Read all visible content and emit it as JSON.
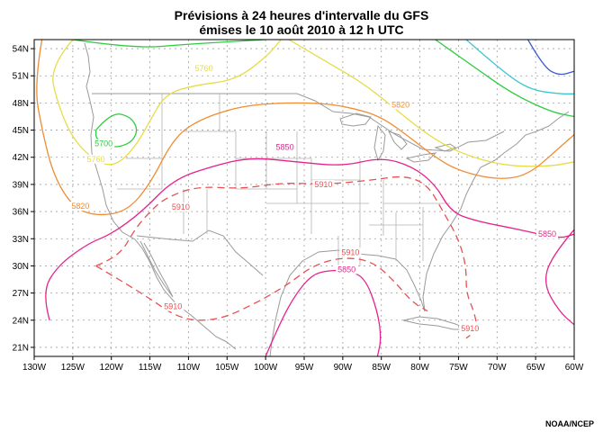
{
  "header": {
    "title_line1": "Prévisions à 24 heures d'intervalle du GFS",
    "title_line2": "émises le 10 août 2010 à 12 h UTC"
  },
  "credit": "NOAA/NCEP",
  "map": {
    "lon_range": [
      -130,
      -60
    ],
    "lat_range": [
      20,
      55
    ],
    "lon_ticks": [
      {
        "v": -130,
        "label": "130W"
      },
      {
        "v": -125,
        "label": "125W"
      },
      {
        "v": -120,
        "label": "120W"
      },
      {
        "v": -115,
        "label": "115W"
      },
      {
        "v": -110,
        "label": "110W"
      },
      {
        "v": -105,
        "label": "105W"
      },
      {
        "v": -100,
        "label": "100W"
      },
      {
        "v": -95,
        "label": "95W"
      },
      {
        "v": -90,
        "label": "90W"
      },
      {
        "v": -85,
        "label": "85W"
      },
      {
        "v": -80,
        "label": "80W"
      },
      {
        "v": -75,
        "label": "75W"
      },
      {
        "v": -70,
        "label": "70W"
      },
      {
        "v": -65,
        "label": "65W"
      },
      {
        "v": -60,
        "label": "60W"
      }
    ],
    "lat_ticks": [
      {
        "v": 54,
        "label": "54N"
      },
      {
        "v": 51,
        "label": "51N"
      },
      {
        "v": 48,
        "label": "48N"
      },
      {
        "v": 45,
        "label": "45N"
      },
      {
        "v": 42,
        "label": "42N"
      },
      {
        "v": 39,
        "label": "39N"
      },
      {
        "v": 36,
        "label": "36N"
      },
      {
        "v": 33,
        "label": "33N"
      },
      {
        "v": 30,
        "label": "30N"
      },
      {
        "v": 27,
        "label": "27N"
      },
      {
        "v": 24,
        "label": "24N"
      },
      {
        "v": 21,
        "label": "21N"
      }
    ],
    "grid": true,
    "contours": [
      {
        "id": "5700-west",
        "color": "#2ecc40",
        "dashed": false,
        "points": [
          [
            -122,
            45
          ],
          [
            -120,
            47
          ],
          [
            -117.5,
            46.5
          ],
          [
            -116.5,
            45
          ],
          [
            -117.5,
            43.5
          ],
          [
            -120,
            43
          ],
          [
            -122,
            44
          ],
          [
            -122,
            45
          ]
        ]
      },
      {
        "id": "5700-north",
        "color": "#2ecc40",
        "dashed": false,
        "points": [
          [
            -125,
            55
          ],
          [
            -117,
            54
          ],
          [
            -110,
            54.5
          ],
          [
            -100,
            55
          ]
        ]
      },
      {
        "id": "5700-northeast",
        "color": "#2ecc40",
        "dashed": false,
        "points": [
          [
            -78,
            55
          ],
          [
            -73,
            52
          ],
          [
            -68,
            49
          ],
          [
            -63,
            47
          ],
          [
            -60,
            46.5
          ]
        ]
      },
      {
        "id": "5760-arc",
        "color": "#e6dc46",
        "dashed": false,
        "points": [
          [
            -125,
            55
          ],
          [
            -128,
            52
          ],
          [
            -127,
            48
          ],
          [
            -125,
            44
          ],
          [
            -122,
            41.5
          ],
          [
            -119.5,
            41
          ],
          [
            -117,
            43
          ],
          [
            -115,
            46
          ],
          [
            -113,
            49
          ],
          [
            -109,
            50
          ],
          [
            -104,
            50.5
          ],
          [
            -100,
            53
          ],
          [
            -98,
            55
          ]
        ]
      },
      {
        "id": "5760-east",
        "color": "#e6dc46",
        "dashed": false,
        "points": [
          [
            -97,
            55
          ],
          [
            -92,
            52.5
          ],
          [
            -87,
            50
          ],
          [
            -82,
            46.5
          ],
          [
            -79,
            44.5
          ],
          [
            -75,
            42.5
          ],
          [
            -69,
            41
          ],
          [
            -63,
            41
          ],
          [
            -60,
            41.5
          ]
        ]
      },
      {
        "id": "5820",
        "color": "#f08c32",
        "dashed": false,
        "points": [
          [
            -129,
            55
          ],
          [
            -130,
            50
          ],
          [
            -129,
            45
          ],
          [
            -127.5,
            40
          ],
          [
            -125,
            36.5
          ],
          [
            -122,
            35.5
          ],
          [
            -118,
            36
          ],
          [
            -115,
            39
          ],
          [
            -112,
            44
          ],
          [
            -109,
            46
          ],
          [
            -104,
            47.5
          ],
          [
            -99,
            48
          ],
          [
            -93,
            48
          ],
          [
            -89,
            47.5
          ],
          [
            -85,
            46.5
          ],
          [
            -81,
            44
          ],
          [
            -78,
            42
          ],
          [
            -75,
            40.5
          ],
          [
            -70,
            39.5
          ],
          [
            -66,
            40
          ],
          [
            -62,
            43
          ],
          [
            -60,
            44.5
          ]
        ]
      },
      {
        "id": "5850",
        "color": "#e6238c",
        "dashed": false,
        "points": [
          [
            -128,
            24
          ],
          [
            -129,
            27
          ],
          [
            -127,
            30
          ],
          [
            -123,
            32.5
          ],
          [
            -120,
            33.5
          ],
          [
            -116,
            36
          ],
          [
            -112,
            39.5
          ],
          [
            -107,
            41
          ],
          [
            -102,
            42
          ],
          [
            -96,
            41.5
          ],
          [
            -90,
            41
          ],
          [
            -85,
            42
          ],
          [
            -81,
            41
          ],
          [
            -78,
            39
          ],
          [
            -76,
            36
          ],
          [
            -73,
            35
          ],
          [
            -67,
            34
          ],
          [
            -62,
            33
          ],
          [
            -60,
            33.5
          ]
        ]
      },
      {
        "id": "5850-east",
        "color": "#e6238c",
        "dashed": false,
        "points": [
          [
            -60,
            34
          ],
          [
            -63,
            31
          ],
          [
            -64,
            28
          ],
          [
            -62,
            25
          ],
          [
            -60,
            23.5
          ]
        ]
      },
      {
        "id": "5850-gulf",
        "color": "#e6238c",
        "dashed": false,
        "points": [
          [
            -100,
            20
          ],
          [
            -98,
            24
          ],
          [
            -96,
            27
          ],
          [
            -94,
            29
          ],
          [
            -92,
            29.5
          ],
          [
            -89,
            29.5
          ],
          [
            -87,
            28.5
          ],
          [
            -85.5,
            25
          ],
          [
            -85,
            22
          ],
          [
            -85.5,
            20
          ]
        ]
      },
      {
        "id": "5910-main",
        "color": "#e85050",
        "dashed": true,
        "points": [
          [
            -122,
            30
          ],
          [
            -119,
            31
          ],
          [
            -117,
            34
          ],
          [
            -115,
            36
          ],
          [
            -113,
            37.5
          ],
          [
            -109,
            38.8
          ],
          [
            -103,
            38.5
          ],
          [
            -98,
            39.2
          ],
          [
            -92,
            39
          ],
          [
            -86,
            39.5
          ],
          [
            -82,
            40
          ],
          [
            -79,
            39
          ],
          [
            -77,
            36
          ],
          [
            -75,
            33
          ],
          [
            -74,
            30
          ],
          [
            -74,
            27
          ],
          [
            -73,
            25
          ],
          [
            -72.5,
            23
          ],
          [
            -74,
            22
          ]
        ]
      },
      {
        "id": "5910-south",
        "color": "#e85050",
        "dashed": true,
        "points": [
          [
            -122,
            30
          ],
          [
            -116,
            27
          ],
          [
            -111,
            24
          ],
          [
            -106,
            24
          ],
          [
            -101,
            26
          ],
          [
            -97,
            28
          ],
          [
            -94,
            30
          ],
          [
            -90,
            31
          ],
          [
            -86,
            30.5
          ],
          [
            -83,
            28
          ],
          [
            -81,
            26
          ],
          [
            -79,
            25
          ]
        ]
      }
    ],
    "contour_labels": [
      {
        "text": "5700",
        "lon": -121,
        "lat": 43.2,
        "color": "#2ecc40"
      },
      {
        "text": "5760",
        "lon": -122,
        "lat": 41.5,
        "color": "#e6dc46"
      },
      {
        "text": "5760",
        "lon": -108,
        "lat": 51.5,
        "color": "#e6dc46"
      },
      {
        "text": "5820",
        "lon": -124,
        "lat": 36.3,
        "color": "#f08c32"
      },
      {
        "text": "5820",
        "lon": -82.5,
        "lat": 47.5,
        "color": "#f08c32"
      },
      {
        "text": "5850",
        "lon": -97.5,
        "lat": 42.8,
        "color": "#e6238c"
      },
      {
        "text": "5850",
        "lon": -63.5,
        "lat": 33.2,
        "color": "#e6238c"
      },
      {
        "text": "5850",
        "lon": -89.5,
        "lat": 29.3,
        "color": "#e6238c"
      },
      {
        "text": "5910",
        "lon": -92.5,
        "lat": 38.7,
        "color": "#e85050"
      },
      {
        "text": "5910",
        "lon": -111,
        "lat": 36.2,
        "color": "#e85050"
      },
      {
        "text": "5910",
        "lon": -89,
        "lat": 31.2,
        "color": "#e85050"
      },
      {
        "text": "5910",
        "lon": -112,
        "lat": 25.2,
        "color": "#e85050"
      },
      {
        "text": "5910",
        "lon": -73.5,
        "lat": 22.8,
        "color": "#e85050"
      }
    ],
    "extra_contours": [
      {
        "id": "teal",
        "color": "#3cc8d2",
        "points": [
          [
            -74,
            55
          ],
          [
            -70,
            52
          ],
          [
            -66,
            49.5
          ],
          [
            -62,
            49
          ],
          [
            -60,
            49
          ]
        ]
      },
      {
        "id": "blue",
        "color": "#3c5ad2",
        "points": [
          [
            -66,
            55
          ],
          [
            -64,
            52
          ],
          [
            -62,
            51
          ],
          [
            -60,
            51.5
          ]
        ]
      }
    ]
  }
}
